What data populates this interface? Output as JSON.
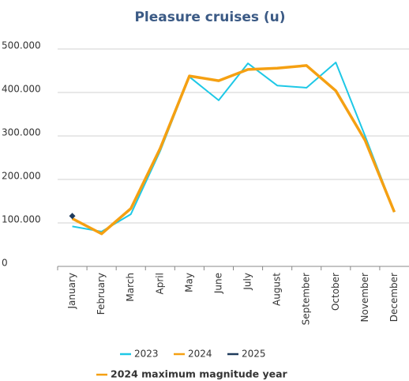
{
  "chart_data": {
    "type": "line",
    "title": "Pleasure cruises (u)",
    "categories": [
      "January",
      "February",
      "March",
      "April",
      "May",
      "June",
      "July",
      "August",
      "September",
      "October",
      "November",
      "December"
    ],
    "series": [
      {
        "name": "2023",
        "color": "#1ec8e6",
        "values": [
          92000,
          80000,
          120000,
          265000,
          436000,
          382000,
          467000,
          416000,
          411000,
          469000,
          300000,
          125000
        ]
      },
      {
        "name": "2024",
        "color": "#f5a012",
        "values": [
          110000,
          75000,
          133000,
          271000,
          438000,
          427000,
          453000,
          456000,
          462000,
          404000,
          290000,
          125000
        ]
      },
      {
        "name": "2025",
        "color": "#1f3b5c",
        "values": [
          116000,
          null,
          null,
          null,
          null,
          null,
          null,
          null,
          null,
          null,
          null,
          null
        ]
      }
    ],
    "ylim": [
      0,
      500000
    ],
    "yticks": [
      0,
      {
        "value": 100000,
        "label": "100.000"
      },
      {
        "value": 200000,
        "label": "200.000"
      },
      {
        "value": 300000,
        "label": "300.000"
      },
      {
        "value": 400000,
        "label": "400.000"
      },
      {
        "value": 500000,
        "label": "500.000"
      }
    ],
    "grid": true,
    "annotation": "2024 maximum magnitude year"
  }
}
